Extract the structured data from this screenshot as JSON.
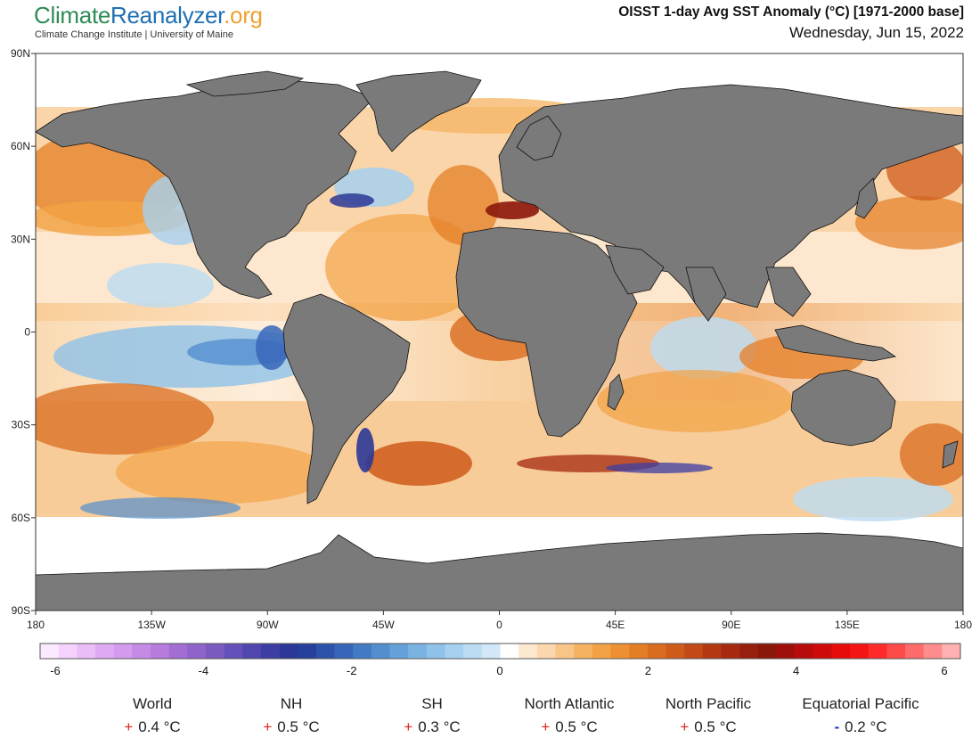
{
  "header": {
    "logo_part1": "Climate",
    "logo_part2": "Reanalyzer",
    "logo_part3": ".org",
    "subtitle": "Climate Change Institute | University of Maine",
    "title": "OISST 1-day Avg SST Anomaly (°C) [1971-2000 base]",
    "date": "Wednesday, Jun 15, 2022"
  },
  "map": {
    "lat_labels": [
      "90N",
      "60N",
      "30N",
      "0",
      "30S",
      "60S",
      "90S"
    ],
    "lon_labels": [
      "180",
      "135W",
      "90W",
      "45W",
      "0",
      "45E",
      "90E",
      "135E",
      "180"
    ],
    "land_color": "#7a7a7a",
    "ice_color": "#ffffff"
  },
  "colorbar": {
    "ticks": [
      "-6",
      "-4",
      "-2",
      "0",
      "2",
      "4",
      "6"
    ],
    "colors": [
      "#fbeaff",
      "#f4d2fc",
      "#ebbdf8",
      "#dfaaf4",
      "#d39aee",
      "#c58ae6",
      "#b77bdd",
      "#a26ed3",
      "#8f64ca",
      "#7a5ac1",
      "#6450b8",
      "#4f46ae",
      "#3c3ea3",
      "#2b3897",
      "#26409c",
      "#2d52aa",
      "#3766b8",
      "#437ac4",
      "#548ecf",
      "#65a1d9",
      "#7ab3e2",
      "#8fc2e9",
      "#a6d0ef",
      "#bcdcf3",
      "#d2e7f7",
      "#ffffff",
      "#fde8d0",
      "#fbd7ad",
      "#f8c586",
      "#f5b362",
      "#f2a244",
      "#ec9031",
      "#e47e25",
      "#da6c1f",
      "#cf5b1b",
      "#c24a17",
      "#b33913",
      "#a52a10",
      "#96200d",
      "#8b160a",
      "#a0100a",
      "#b80c0a",
      "#cf0a0a",
      "#e60c0c",
      "#f51414",
      "#ff2a2a",
      "#ff4a4a",
      "#ff6a6a",
      "#ff8c8c",
      "#ffb0b0"
    ]
  },
  "regions": [
    {
      "name": "World",
      "sign": "+",
      "value": "0.4 °C"
    },
    {
      "name": "NH",
      "sign": "+",
      "value": "0.5 °C"
    },
    {
      "name": "SH",
      "sign": "+",
      "value": "0.3 °C"
    },
    {
      "name": "North Atlantic",
      "sign": "+",
      "value": "0.5 °C"
    },
    {
      "name": "North Pacific",
      "sign": "+",
      "value": "0.5 °C"
    },
    {
      "name": "Equatorial Pacific",
      "sign": "-",
      "value": "0.2 °C"
    }
  ]
}
